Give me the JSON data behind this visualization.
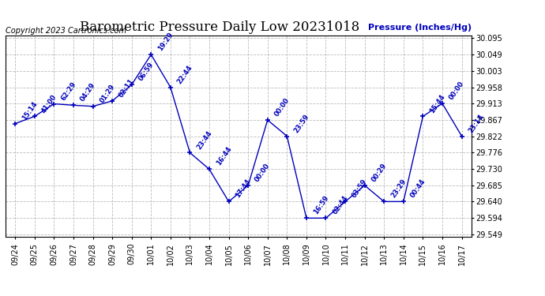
{
  "title": "Barometric Pressure Daily Low 20231018",
  "ylabel": "Pressure (Inches/Hg)",
  "copyright": "Copyright 2023 Cartronics.com",
  "line_color": "#0000bb",
  "background_color": "#ffffff",
  "grid_color": "#aaaaaa",
  "ylim_min": 29.542,
  "ylim_max": 30.102,
  "yticks": [
    29.549,
    29.594,
    29.64,
    29.685,
    29.73,
    29.776,
    29.822,
    29.867,
    29.913,
    29.958,
    30.003,
    30.049,
    30.095
  ],
  "dates": [
    "09/24",
    "09/25",
    "09/26",
    "09/27",
    "09/28",
    "09/29",
    "09/30",
    "10/01",
    "10/02",
    "10/03",
    "10/04",
    "10/05",
    "10/06",
    "10/07",
    "10/08",
    "10/09",
    "10/10",
    "10/11",
    "10/12",
    "10/13",
    "10/14",
    "10/15",
    "10/16",
    "10/17"
  ],
  "values": [
    29.857,
    29.877,
    29.912,
    29.908,
    29.905,
    29.92,
    29.965,
    30.049,
    29.958,
    29.776,
    29.73,
    29.64,
    29.685,
    29.867,
    29.822,
    29.594,
    29.594,
    29.64,
    29.685,
    29.64,
    29.64,
    29.877,
    29.913,
    29.822
  ],
  "times": [
    "15:14",
    "41:00",
    "62:29",
    "04:29",
    "01:29",
    "02:11",
    "06:59",
    "19:29",
    "22:44",
    "23:44",
    "16:44",
    "17:44",
    "00:00",
    "00:00",
    "23:59",
    "16:59",
    "02:44",
    "03:59",
    "00:29",
    "23:29",
    "00:44",
    "15:44",
    "00:00",
    "23:14"
  ],
  "title_fontsize": 12,
  "ylabel_fontsize": 8,
  "tick_fontsize": 7,
  "annotation_fontsize": 6,
  "copyright_fontsize": 7
}
